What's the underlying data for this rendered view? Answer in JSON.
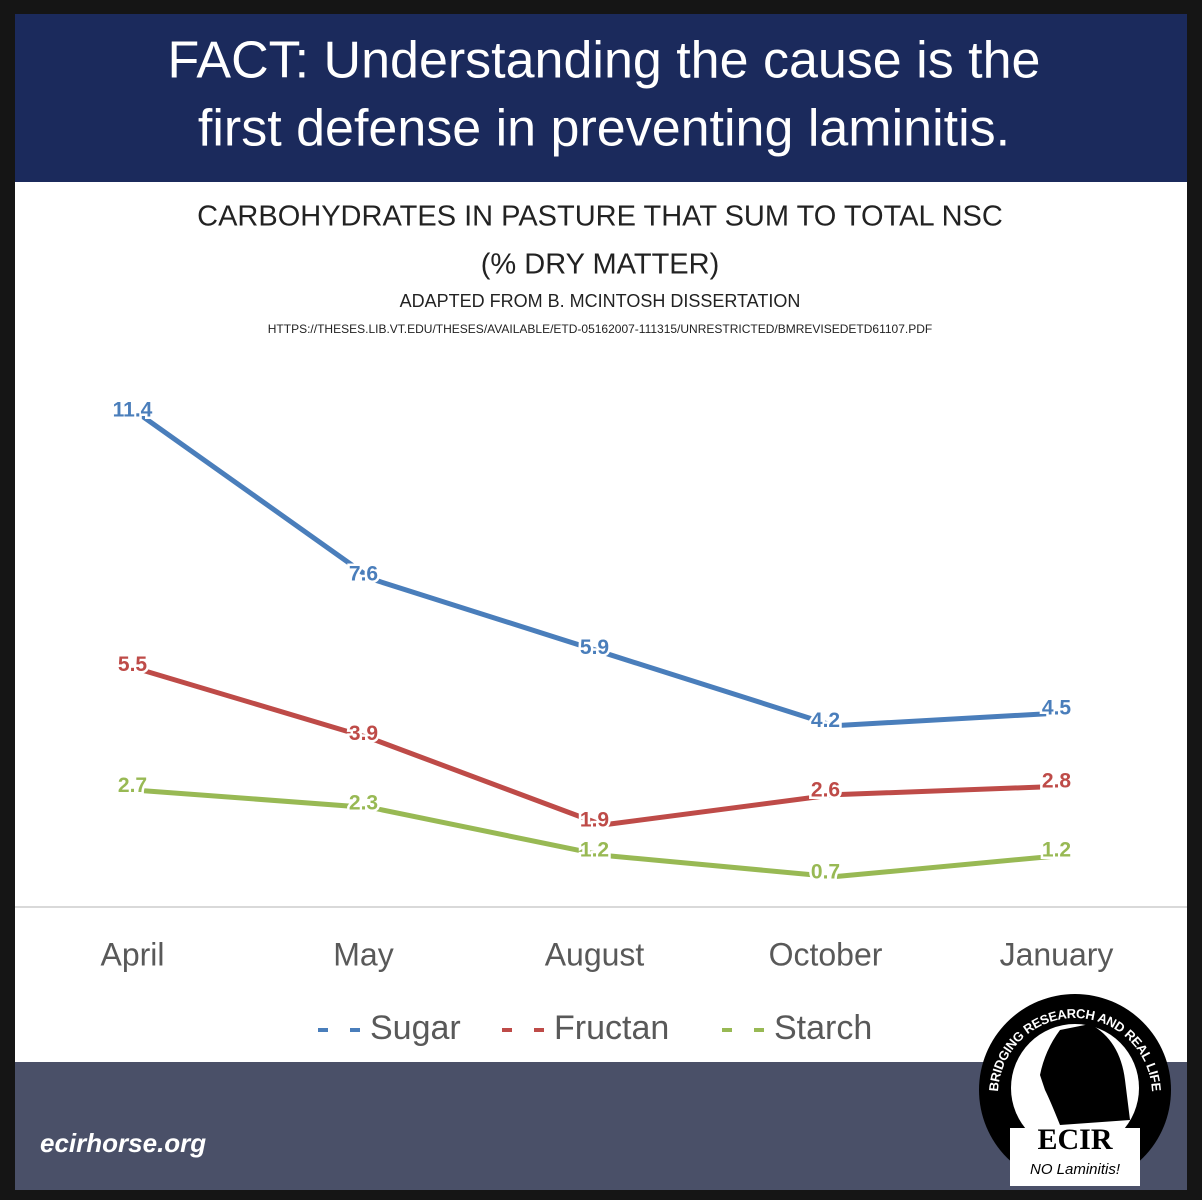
{
  "banner": {
    "lines": [
      "FACT: Understanding the cause is the",
      "first defense in preventing laminitis."
    ]
  },
  "chart_data": {
    "type": "line",
    "title": "CARBOHYDRATES IN PASTURE THAT SUM TO TOTAL NSC",
    "subtitle": "(% DRY MATTER)",
    "source": "ADAPTED FROM B. MCINTOSH DISSERTATION",
    "source_url": "HTTPS://THESES.LIB.VT.EDU/THESES/AVAILABLE/ETD-05162007-111315/UNRESTRICTED/BMREVISEDETD61107.PDF",
    "categories": [
      "April",
      "May",
      "August",
      "October",
      "January"
    ],
    "series": [
      {
        "name": "Sugar",
        "color": "#4a7ebb",
        "values": [
          11.4,
          7.6,
          5.9,
          4.2,
          4.5
        ]
      },
      {
        "name": "Fructan",
        "color": "#be4b48",
        "values": [
          5.5,
          3.9,
          1.9,
          2.6,
          2.8
        ]
      },
      {
        "name": "Starch",
        "color": "#98b954",
        "values": [
          2.7,
          2.3,
          1.2,
          0.7,
          1.2
        ]
      }
    ],
    "ylim": [
      0,
      12
    ],
    "legend": "bottom"
  },
  "footer": {
    "website": "ecirhorse.org"
  },
  "logo": {
    "ring_text": "BRIDGING RESEARCH AND REAL LIFE",
    "name": "ECIR",
    "tagline": "NO Laminitis!"
  }
}
